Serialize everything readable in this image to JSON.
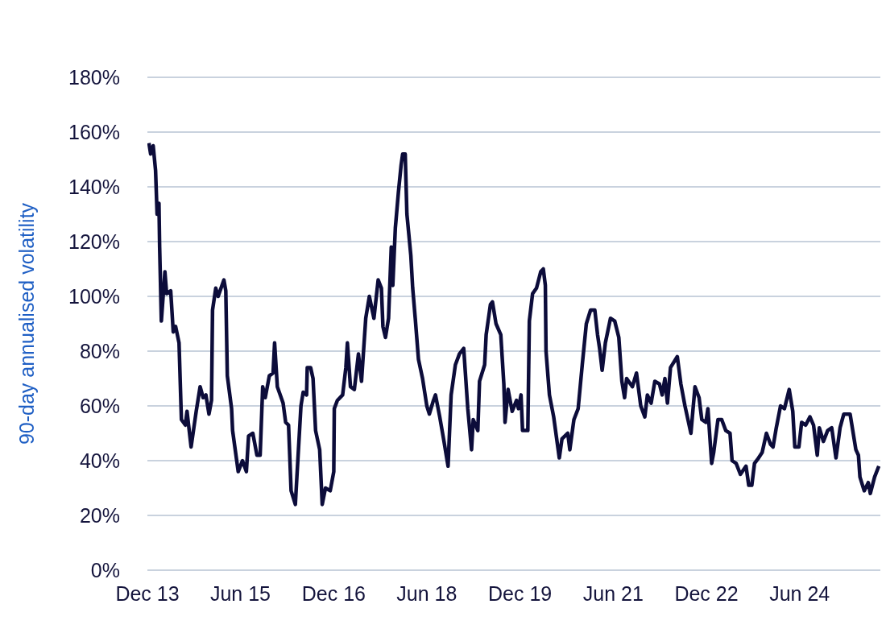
{
  "chart_data": {
    "type": "line",
    "ylabel": "90-day annualised volatility",
    "x": [
      "2013-12-10",
      "2013-12-20",
      "2014-01-04",
      "2014-01-18",
      "2014-01-27",
      "2014-02-07",
      "2014-02-11",
      "2014-02-21",
      "2014-03-14",
      "2014-03-24",
      "2014-04-17",
      "2014-05-02",
      "2014-05-16",
      "2014-06-05",
      "2014-06-19",
      "2014-07-12",
      "2014-07-22",
      "2014-08-15",
      "2014-09-14",
      "2014-10-07",
      "2014-10-25",
      "2014-11-10",
      "2014-11-28",
      "2014-12-13",
      "2014-12-19",
      "2015-01-07",
      "2015-01-21",
      "2015-02-24",
      "2015-03-07",
      "2015-03-16",
      "2015-04-10",
      "2015-04-16",
      "2015-05-19",
      "2015-06-13",
      "2015-07-06",
      "2015-07-19",
      "2015-08-13",
      "2015-09-06",
      "2015-09-25",
      "2015-10-10",
      "2015-10-25",
      "2015-11-18",
      "2015-12-10",
      "2015-12-19",
      "2016-01-04",
      "2016-02-07",
      "2016-02-22",
      "2016-03-10",
      "2016-03-25",
      "2016-04-19",
      "2016-04-28",
      "2016-05-22",
      "2016-06-04",
      "2016-06-24",
      "2016-06-28",
      "2016-07-18",
      "2016-08-01",
      "2016-08-16",
      "2016-09-09",
      "2016-09-24",
      "2016-10-13",
      "2016-11-10",
      "2016-12-01",
      "2016-12-04",
      "2016-12-22",
      "2017-01-22",
      "2017-02-10",
      "2017-02-19",
      "2017-03-09",
      "2017-04-01",
      "2017-04-25",
      "2017-05-13",
      "2017-06-07",
      "2017-06-28",
      "2017-07-25",
      "2017-08-19",
      "2017-09-07",
      "2017-09-16",
      "2017-10-01",
      "2017-10-19",
      "2017-11-04",
      "2017-11-13",
      "2017-11-28",
      "2017-12-16",
      "2018-01-01",
      "2018-01-10",
      "2018-01-25",
      "2018-02-04",
      "2018-02-27",
      "2018-03-10",
      "2018-03-25",
      "2018-04-13",
      "2018-05-07",
      "2018-06-01",
      "2018-06-16",
      "2018-07-10",
      "2018-07-22",
      "2018-08-16",
      "2018-09-10",
      "2018-10-04",
      "2018-10-22",
      "2018-11-16",
      "2018-12-10",
      "2019-01-04",
      "2019-01-28",
      "2019-02-19",
      "2019-03-01",
      "2019-03-28",
      "2019-04-07",
      "2019-05-07",
      "2019-05-16",
      "2019-06-10",
      "2019-06-22",
      "2019-07-13",
      "2019-08-10",
      "2019-08-28",
      "2019-09-04",
      "2019-09-22",
      "2019-10-16",
      "2019-11-10",
      "2019-11-22",
      "2019-12-07",
      "2019-12-16",
      "2020-01-16",
      "2020-01-25",
      "2020-02-13",
      "2020-03-07",
      "2020-04-01",
      "2020-04-16",
      "2020-04-28",
      "2020-05-02",
      "2020-05-22",
      "2020-06-16",
      "2020-07-19",
      "2020-08-04",
      "2020-09-07",
      "2020-09-19",
      "2020-10-13",
      "2020-11-07",
      "2020-12-01",
      "2020-12-25",
      "2021-01-19",
      "2021-02-13",
      "2021-03-01",
      "2021-03-13",
      "2021-03-28",
      "2021-04-16",
      "2021-05-16",
      "2021-06-10",
      "2021-07-04",
      "2021-07-22",
      "2021-08-07",
      "2021-08-19",
      "2021-09-22",
      "2021-10-16",
      "2021-11-10",
      "2021-12-04",
      "2021-12-19",
      "2022-01-10",
      "2022-02-01",
      "2022-02-28",
      "2022-03-16",
      "2022-04-01",
      "2022-04-16",
      "2022-05-04",
      "2022-06-13",
      "2022-07-04",
      "2022-07-28",
      "2022-09-01",
      "2022-09-25",
      "2022-10-19",
      "2022-11-04",
      "2022-11-28",
      "2022-12-10",
      "2023-01-01",
      "2023-01-13",
      "2023-02-07",
      "2023-03-01",
      "2023-03-25",
      "2023-04-19",
      "2023-05-01",
      "2023-05-25",
      "2023-06-19",
      "2023-07-22",
      "2023-08-07",
      "2023-08-25",
      "2023-09-10",
      "2023-10-04",
      "2023-10-25",
      "2023-11-19",
      "2023-12-13",
      "2023-12-28",
      "2024-01-16",
      "2024-02-10",
      "2024-03-04",
      "2024-04-01",
      "2024-04-22",
      "2024-05-04",
      "2024-05-28",
      "2024-06-13",
      "2024-07-07",
      "2024-08-01",
      "2024-08-22",
      "2024-09-13",
      "2024-09-25",
      "2024-10-19",
      "2024-11-13",
      "2024-12-07",
      "2025-01-01",
      "2025-01-25",
      "2025-02-16",
      "2025-03-25",
      "2025-04-28",
      "2025-05-13",
      "2025-05-22",
      "2025-06-16",
      "2025-07-10",
      "2025-07-22",
      "2025-08-16",
      "2025-09-10"
    ],
    "series": [
      {
        "color": "#0c0c3a",
        "values": [
          156,
          152,
          155,
          146,
          130,
          134,
          118,
          91,
          109,
          101,
          102,
          87,
          89,
          83,
          55,
          53,
          58,
          45,
          58,
          67,
          63,
          64,
          57,
          62,
          95,
          103,
          100,
          106,
          102,
          71,
          59,
          51,
          36,
          40,
          36,
          49,
          50,
          42,
          42,
          67,
          63,
          71,
          72,
          83,
          67,
          61,
          54,
          53,
          29,
          24,
          34,
          60,
          65,
          64,
          74,
          74,
          70,
          51,
          44,
          24,
          30,
          29,
          36,
          59,
          62,
          64,
          74,
          83,
          67,
          66,
          79,
          69,
          92,
          100,
          92,
          106,
          103,
          89,
          85,
          92,
          118,
          104,
          125,
          138,
          148,
          152,
          152,
          130,
          115,
          103,
          92,
          77,
          70,
          60,
          57,
          62,
          64,
          56,
          47,
          38,
          64,
          75,
          79,
          81,
          59,
          44,
          55,
          51,
          69,
          75,
          86,
          97,
          98,
          90,
          86,
          68,
          54,
          66,
          58,
          62,
          59,
          64,
          51,
          51,
          91,
          101,
          103,
          109,
          110,
          104,
          80,
          64,
          56,
          41,
          48,
          50,
          44,
          55,
          59,
          75,
          90,
          95,
          95,
          86,
          81,
          73,
          83,
          92,
          91,
          85,
          69,
          63,
          70,
          67,
          72,
          60,
          56,
          64,
          61,
          69,
          68,
          64,
          70,
          61,
          74,
          78,
          68,
          60,
          50,
          67,
          63,
          55,
          54,
          59,
          39,
          43,
          55,
          55,
          51,
          50,
          40,
          39,
          35,
          38,
          31,
          31,
          39,
          41,
          43,
          50,
          46,
          45,
          52,
          60,
          59,
          66,
          58,
          45,
          45,
          54,
          53,
          56,
          53,
          42,
          52,
          47,
          51,
          52,
          41,
          52,
          57,
          57,
          44,
          42,
          34,
          29,
          32,
          28,
          34,
          38
        ]
      }
    ],
    "xlim": [
      "2013-12-01",
      "2025-09-19"
    ],
    "xticks": [
      {
        "value": "2013-12-01",
        "label": "Dec 13"
      },
      {
        "value": "2015-06-01",
        "label": "Jun 15"
      },
      {
        "value": "2016-12-01",
        "label": "Dec 16"
      },
      {
        "value": "2018-06-01",
        "label": "Jun 18"
      },
      {
        "value": "2019-12-01",
        "label": "Dec 19"
      },
      {
        "value": "2021-06-01",
        "label": "Jun 21"
      },
      {
        "value": "2022-12-01",
        "label": "Dec 22"
      },
      {
        "value": "2024-06-01",
        "label": "Jun 24"
      }
    ],
    "ylim": [
      0,
      180
    ],
    "yticks": [
      {
        "value": 0,
        "label": "0%"
      },
      {
        "value": 20,
        "label": "20%"
      },
      {
        "value": 40,
        "label": "40%"
      },
      {
        "value": 60,
        "label": "60%"
      },
      {
        "value": 80,
        "label": "80%"
      },
      {
        "value": 100,
        "label": "100%"
      },
      {
        "value": 120,
        "label": "120%"
      },
      {
        "value": 140,
        "label": "140%"
      },
      {
        "value": 160,
        "label": "160%"
      },
      {
        "value": 180,
        "label": "180%"
      }
    ],
    "grid": "y",
    "legend": false,
    "line_style": "solid",
    "marker": "none"
  }
}
